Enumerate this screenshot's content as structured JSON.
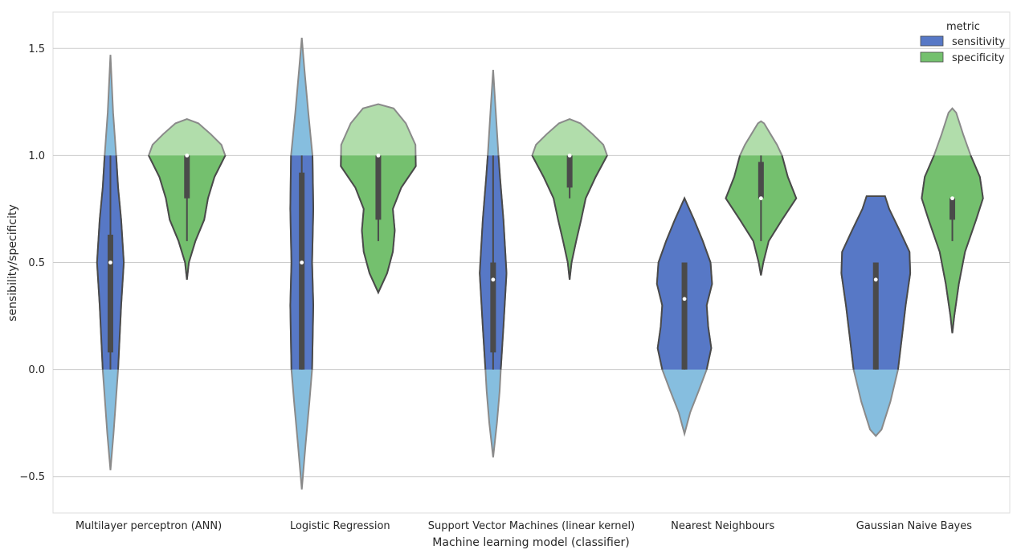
{
  "chart_data": {
    "type": "violin",
    "xlabel": "Machine learning model (classifier)",
    "ylabel": "sensibility/specificity",
    "categories": [
      "Multilayer perceptron (ANN)",
      "Logistic Regression",
      "Support Vector Machines (linear kernel)",
      "Nearest Neighbours",
      "Gaussian Naive Bayes"
    ],
    "ylim": [
      -0.67,
      1.67
    ],
    "yticks": [
      -0.5,
      0.0,
      0.5,
      1.0,
      1.5
    ],
    "ytick_labels": [
      "−0.5",
      "0.0",
      "0.5",
      "1.0",
      "1.5"
    ],
    "grid": true,
    "valid_range": [
      0,
      1
    ],
    "colors": {
      "sensitivity": "#5778c6",
      "sensitivity_outside": "#86bedf",
      "specificity": "#74c06e",
      "specificity_outside": "#b1ddab",
      "box": "#4a4a4a",
      "outline": "#4a4a4a",
      "grid": "#cccccc"
    },
    "legend": {
      "title": "metric",
      "position": "top-right",
      "entries": [
        "sensitivity",
        "specificity"
      ]
    },
    "series": [
      {
        "name": "sensitivity",
        "violins": [
          {
            "median": 0.5,
            "q1": 0.08,
            "q3": 0.63,
            "whisker_low": 0.0,
            "whisker_high": 1.0,
            "profile": [
              [
                -0.47,
                0.0
              ],
              [
                -0.3,
                0.08
              ],
              [
                -0.1,
                0.16
              ],
              [
                0.0,
                0.2
              ],
              [
                0.3,
                0.28
              ],
              [
                0.5,
                0.35
              ],
              [
                0.7,
                0.28
              ],
              [
                0.85,
                0.2
              ],
              [
                1.0,
                0.15
              ],
              [
                1.2,
                0.07
              ],
              [
                1.47,
                0.0
              ]
            ]
          },
          {
            "median": 0.5,
            "q1": 0.0,
            "q3": 0.92,
            "whisker_low": 0.0,
            "whisker_high": 1.0,
            "profile": [
              [
                -0.56,
                0.0
              ],
              [
                -0.35,
                0.1
              ],
              [
                -0.15,
                0.2
              ],
              [
                0.0,
                0.27
              ],
              [
                0.3,
                0.3
              ],
              [
                0.5,
                0.27
              ],
              [
                0.75,
                0.3
              ],
              [
                1.0,
                0.28
              ],
              [
                1.2,
                0.17
              ],
              [
                1.4,
                0.07
              ],
              [
                1.55,
                0.0
              ]
            ]
          },
          {
            "median": 0.42,
            "q1": 0.08,
            "q3": 0.5,
            "whisker_low": 0.0,
            "whisker_high": 1.0,
            "profile": [
              [
                -0.41,
                0.0
              ],
              [
                -0.25,
                0.1
              ],
              [
                -0.1,
                0.17
              ],
              [
                0.0,
                0.2
              ],
              [
                0.2,
                0.27
              ],
              [
                0.45,
                0.35
              ],
              [
                0.7,
                0.27
              ],
              [
                0.9,
                0.18
              ],
              [
                1.0,
                0.14
              ],
              [
                1.2,
                0.07
              ],
              [
                1.4,
                0.0
              ]
            ]
          },
          {
            "median": 0.33,
            "q1": 0.0,
            "q3": 0.5,
            "whisker_low": 0.0,
            "whisker_high": 0.5,
            "profile": [
              [
                -0.3,
                0.0
              ],
              [
                -0.2,
                0.15
              ],
              [
                -0.1,
                0.37
              ],
              [
                0.0,
                0.58
              ],
              [
                0.1,
                0.7
              ],
              [
                0.2,
                0.62
              ],
              [
                0.3,
                0.58
              ],
              [
                0.4,
                0.72
              ],
              [
                0.5,
                0.68
              ],
              [
                0.6,
                0.48
              ],
              [
                0.7,
                0.25
              ],
              [
                0.8,
                0.0
              ]
            ]
          },
          {
            "median": 0.42,
            "q1": 0.0,
            "q3": 0.5,
            "whisker_low": 0.0,
            "whisker_high": 0.5,
            "profile": [
              [
                -0.31,
                0.0
              ],
              [
                -0.28,
                0.15
              ],
              [
                -0.15,
                0.38
              ],
              [
                0.0,
                0.58
              ],
              [
                0.15,
                0.68
              ],
              [
                0.3,
                0.78
              ],
              [
                0.45,
                0.9
              ],
              [
                0.55,
                0.88
              ],
              [
                0.65,
                0.62
              ],
              [
                0.75,
                0.35
              ],
              [
                0.81,
                0.24
              ],
              [
                0.81,
                0.0
              ]
            ]
          }
        ]
      },
      {
        "name": "specificity",
        "violins": [
          {
            "median": 1.0,
            "q1": 0.8,
            "q3": 1.0,
            "whisker_low": 0.6,
            "whisker_high": 1.0,
            "profile": [
              [
                0.42,
                0.0
              ],
              [
                0.5,
                0.05
              ],
              [
                0.6,
                0.22
              ],
              [
                0.7,
                0.45
              ],
              [
                0.8,
                0.55
              ],
              [
                0.9,
                0.72
              ],
              [
                1.0,
                1.0
              ],
              [
                1.05,
                0.9
              ],
              [
                1.1,
                0.62
              ],
              [
                1.15,
                0.3
              ],
              [
                1.17,
                0.0
              ]
            ]
          },
          {
            "median": 1.0,
            "q1": 0.7,
            "q3": 1.0,
            "whisker_low": 0.6,
            "whisker_high": 1.0,
            "profile": [
              [
                0.36,
                0.0
              ],
              [
                0.45,
                0.23
              ],
              [
                0.55,
                0.38
              ],
              [
                0.65,
                0.43
              ],
              [
                0.75,
                0.38
              ],
              [
                0.85,
                0.6
              ],
              [
                0.95,
                0.98
              ],
              [
                1.05,
                0.97
              ],
              [
                1.15,
                0.72
              ],
              [
                1.22,
                0.4
              ],
              [
                1.24,
                0.0
              ]
            ]
          },
          {
            "median": 1.0,
            "q1": 0.85,
            "q3": 1.0,
            "whisker_low": 0.8,
            "whisker_high": 1.0,
            "profile": [
              [
                0.42,
                0.0
              ],
              [
                0.5,
                0.05
              ],
              [
                0.6,
                0.17
              ],
              [
                0.7,
                0.3
              ],
              [
                0.8,
                0.42
              ],
              [
                0.9,
                0.68
              ],
              [
                1.0,
                0.98
              ],
              [
                1.05,
                0.88
              ],
              [
                1.1,
                0.6
              ],
              [
                1.15,
                0.28
              ],
              [
                1.17,
                0.0
              ]
            ]
          },
          {
            "median": 0.8,
            "q1": 0.8,
            "q3": 0.97,
            "whisker_low": 0.6,
            "whisker_high": 1.0,
            "profile": [
              [
                0.44,
                0.0
              ],
              [
                0.5,
                0.06
              ],
              [
                0.6,
                0.2
              ],
              [
                0.7,
                0.55
              ],
              [
                0.8,
                0.92
              ],
              [
                0.9,
                0.7
              ],
              [
                1.0,
                0.55
              ],
              [
                1.05,
                0.42
              ],
              [
                1.1,
                0.25
              ],
              [
                1.15,
                0.08
              ],
              [
                1.16,
                0.0
              ]
            ]
          },
          {
            "median": 0.8,
            "q1": 0.7,
            "q3": 0.8,
            "whisker_low": 0.6,
            "whisker_high": 0.8,
            "profile": [
              [
                0.17,
                0.0
              ],
              [
                0.25,
                0.05
              ],
              [
                0.4,
                0.17
              ],
              [
                0.55,
                0.33
              ],
              [
                0.7,
                0.62
              ],
              [
                0.8,
                0.8
              ],
              [
                0.9,
                0.72
              ],
              [
                1.0,
                0.48
              ],
              [
                1.1,
                0.28
              ],
              [
                1.2,
                0.1
              ],
              [
                1.22,
                0.0
              ]
            ]
          }
        ]
      }
    ]
  }
}
